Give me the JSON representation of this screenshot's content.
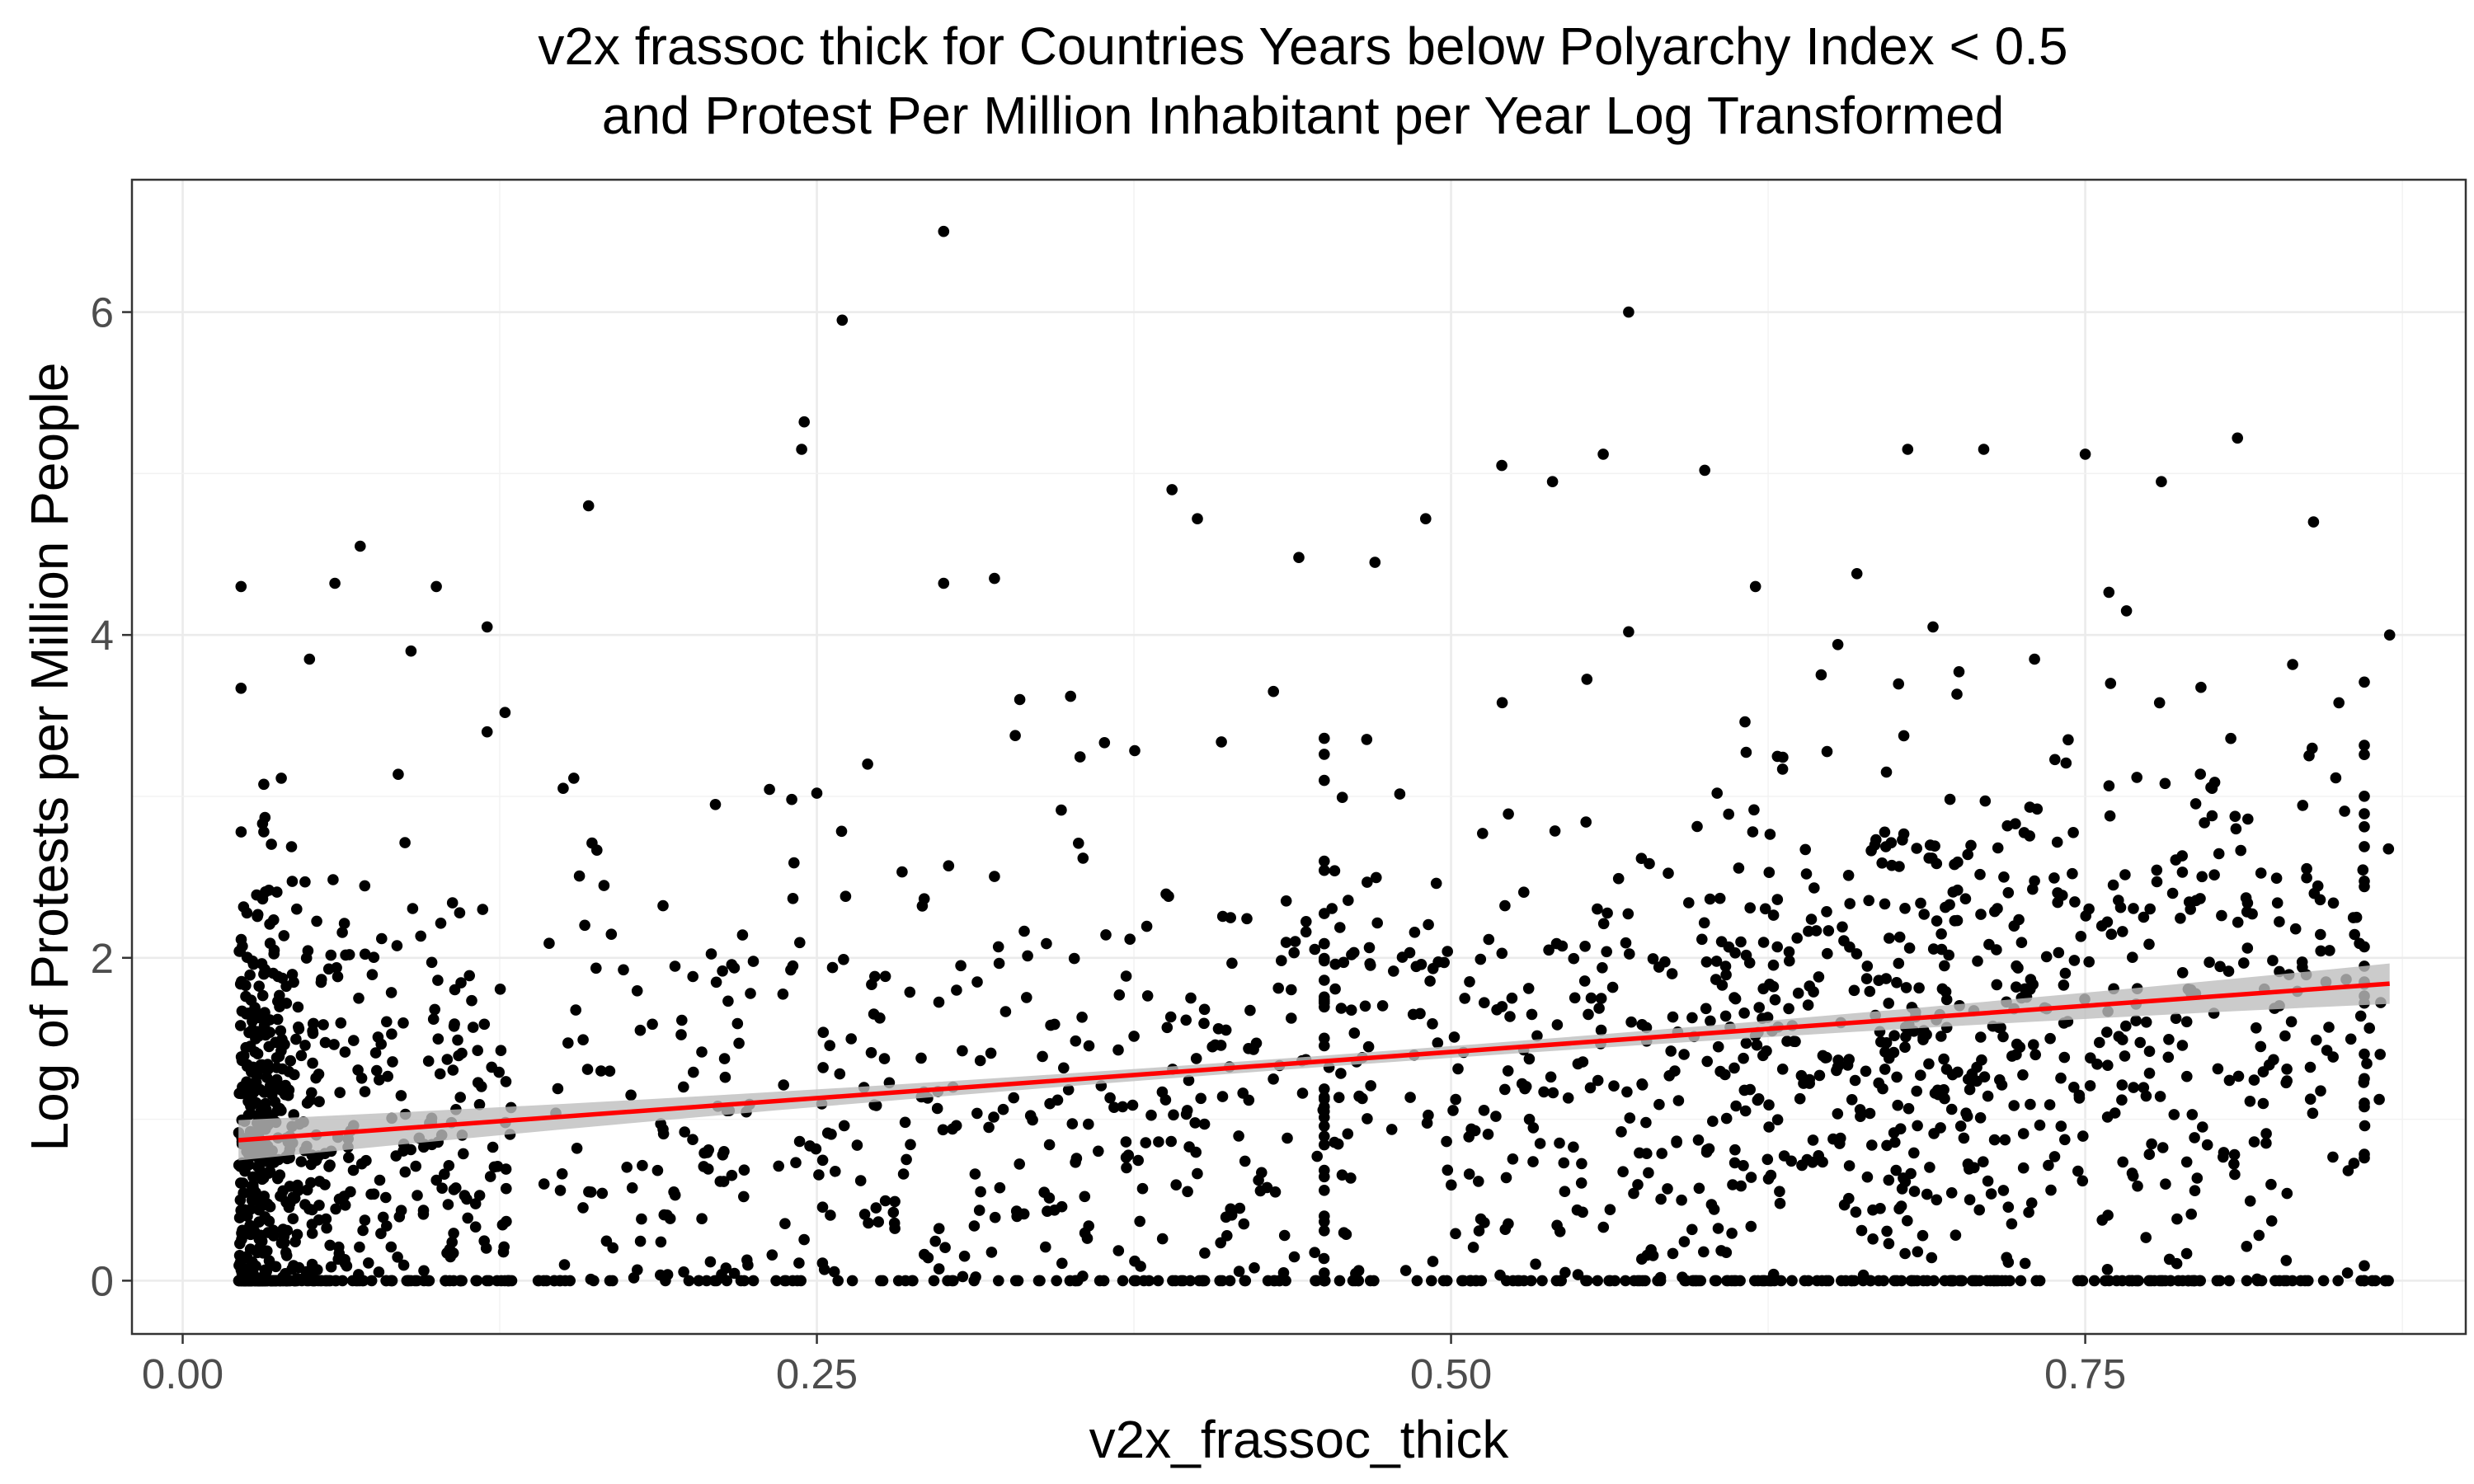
{
  "chart_data": {
    "type": "scatter",
    "title_lines": [
      "v2x frassoc thick for Countries Years below Polyarchy Index < 0.5",
      "and Protest Per Million Inhabitant per Year Log Transformed"
    ],
    "xlabel": "v2x_frassoc_thick",
    "ylabel": "Log of Protests per Million People",
    "xlim": [
      -0.02,
      0.9
    ],
    "ylim": [
      -0.33,
      6.82
    ],
    "x_ticks": [
      0.0,
      0.25,
      0.5,
      0.75
    ],
    "x_tick_labels": [
      "0.00",
      "0.25",
      "0.50",
      "0.75"
    ],
    "y_ticks": [
      0,
      2,
      4,
      6
    ],
    "y_tick_labels": [
      "0",
      "2",
      "4",
      "6"
    ],
    "grid": true,
    "theme": "bw",
    "point_color": "#000000",
    "fit_line": {
      "method": "linear",
      "color": "#ff0000",
      "band_color": "#bebebe",
      "x": [
        0.022,
        0.87
      ],
      "y": [
        0.87,
        1.84
      ]
    },
    "points_highlighted": [
      [
        0.3,
        6.5
      ],
      [
        0.26,
        5.95
      ],
      [
        0.57,
        6.0
      ],
      [
        0.245,
        5.32
      ],
      [
        0.244,
        5.15
      ],
      [
        0.16,
        4.8
      ],
      [
        0.39,
        4.9
      ],
      [
        0.4,
        4.72
      ],
      [
        0.023,
        4.3
      ],
      [
        0.07,
        4.55
      ],
      [
        0.06,
        4.32
      ],
      [
        0.1,
        4.3
      ],
      [
        0.12,
        4.05
      ],
      [
        0.3,
        4.32
      ],
      [
        0.32,
        4.35
      ],
      [
        0.44,
        4.48
      ],
      [
        0.47,
        4.45
      ],
      [
        0.49,
        4.72
      ],
      [
        0.52,
        5.05
      ],
      [
        0.54,
        4.95
      ],
      [
        0.56,
        5.12
      ],
      [
        0.6,
        5.02
      ],
      [
        0.68,
        5.15
      ],
      [
        0.71,
        5.15
      ],
      [
        0.75,
        5.12
      ],
      [
        0.78,
        4.95
      ],
      [
        0.81,
        5.22
      ],
      [
        0.84,
        4.7
      ],
      [
        0.87,
        4.0
      ],
      [
        0.023,
        3.67
      ],
      [
        0.05,
        3.85
      ],
      [
        0.09,
        3.9
      ],
      [
        0.25,
        3.02
      ],
      [
        0.33,
        3.6
      ],
      [
        0.35,
        3.62
      ],
      [
        0.43,
        3.65
      ],
      [
        0.57,
        4.02
      ],
      [
        0.62,
        4.3
      ],
      [
        0.66,
        4.38
      ],
      [
        0.69,
        4.05
      ],
      [
        0.73,
        3.85
      ],
      [
        0.76,
        3.7
      ],
      [
        0.8,
        3.05
      ],
      [
        0.85,
        3.58
      ],
      [
        0.27,
        3.2
      ],
      [
        0.21,
        2.95
      ],
      [
        0.15,
        3.05
      ],
      [
        0.12,
        3.4
      ]
    ]
  }
}
